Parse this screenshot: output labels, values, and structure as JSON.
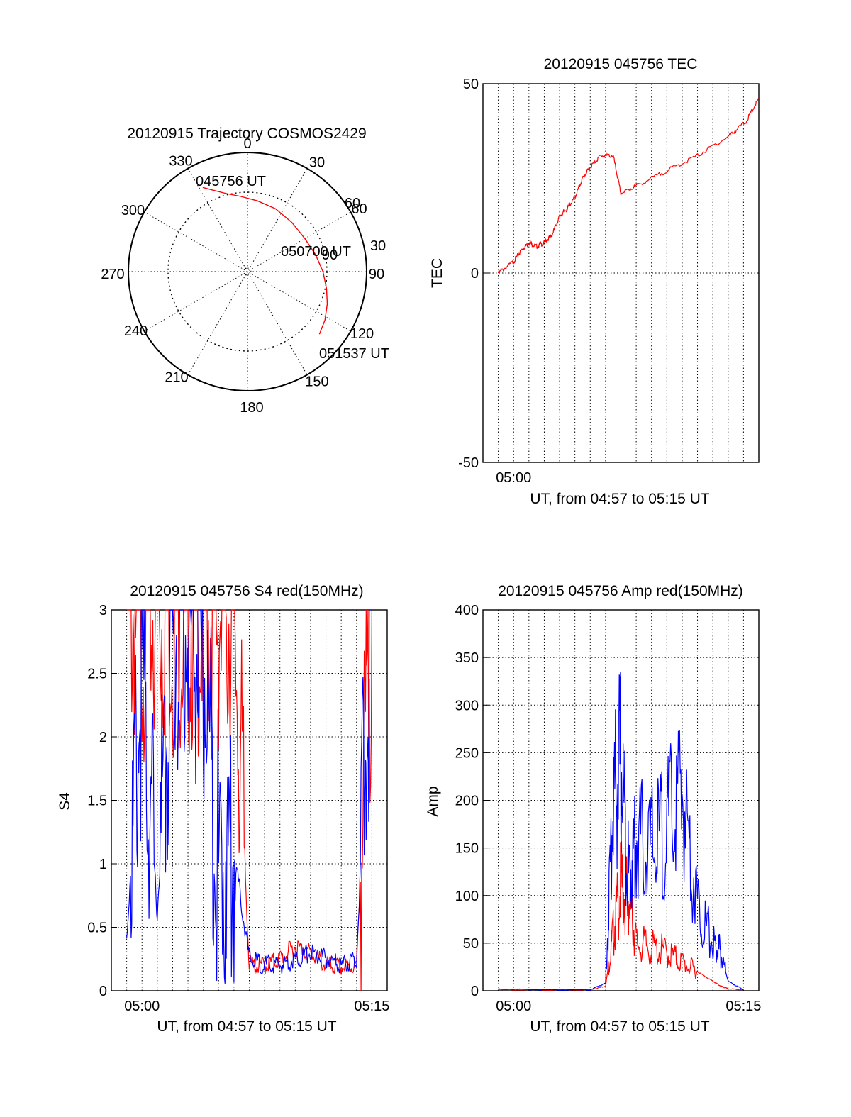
{
  "chart_data": [
    {
      "type": "polar",
      "title": "20120915 Trajectory COSMOS2429",
      "angle_labels": [
        "0",
        "30",
        "60",
        "90",
        "120",
        "150",
        "180",
        "210",
        "240",
        "270",
        "300",
        "330"
      ],
      "radius_labels": [
        "30",
        "60",
        "90"
      ],
      "point_labels": {
        "start": "045756 UT",
        "mid": "050700 UT",
        "end": "051537 UT"
      },
      "rmax": 90,
      "trajectory": {
        "color": "#ff0000",
        "points": [
          {
            "az": 332,
            "el": 18
          },
          {
            "az": 338,
            "el": 24
          },
          {
            "az": 345,
            "el": 29
          },
          {
            "az": 355,
            "el": 33
          },
          {
            "az": 8,
            "el": 36
          },
          {
            "az": 24,
            "el": 38
          },
          {
            "az": 42,
            "el": 40
          },
          {
            "az": 60,
            "el": 40
          },
          {
            "az": 76,
            "el": 37
          },
          {
            "az": 90,
            "el": 33
          },
          {
            "az": 102,
            "el": 29
          },
          {
            "az": 112,
            "el": 25
          },
          {
            "az": 122,
            "el": 21
          },
          {
            "az": 131,
            "el": 18
          }
        ]
      }
    },
    {
      "type": "line",
      "title": "20120915 045756 TEC",
      "xlabel": "UT, from 04:57 to 05:15 UT",
      "ylabel": "TEC",
      "xlim": [
        "04:58",
        "05:16"
      ],
      "ylim": [
        -50,
        50
      ],
      "yticks": [
        "50",
        "0",
        "-50"
      ],
      "xticks": [
        {
          "x": "05:00",
          "label": "05:00"
        }
      ],
      "series": [
        {
          "color": "#ff0000",
          "x": [
            "04:59",
            "05:00",
            "05:00:30",
            "05:01",
            "05:01:30",
            "05:02",
            "05:02:30",
            "05:03",
            "05:03:30",
            "05:04",
            "05:04:30",
            "05:05",
            "05:05:40",
            "05:06:30",
            "05:07:00",
            "05:08",
            "05:10",
            "05:12",
            "05:14",
            "05:15:10",
            "05:16"
          ],
          "y": [
            0,
            3,
            6,
            8,
            7,
            8,
            10,
            15,
            17,
            20,
            25,
            28,
            31,
            31,
            21,
            23,
            27,
            31,
            36,
            40,
            46
          ]
        }
      ]
    },
    {
      "type": "line",
      "title": "20120915 045756 S4 red(150MHz)",
      "xlabel": "UT, from 04:57 to 05:15 UT",
      "ylabel": "S4",
      "xlim": [
        "04:58",
        "05:16"
      ],
      "ylim": [
        0,
        3
      ],
      "yticks": [
        "3",
        "2.5",
        "2",
        "1.5",
        "1",
        "0.5",
        "0"
      ],
      "xticks": [
        {
          "x": "05:00",
          "label": "05:00"
        },
        {
          "x": "05:15",
          "label": "05:15"
        }
      ],
      "series": [
        {
          "color": "#ff0000",
          "x": [
            "04:59",
            "05:00",
            "05:01",
            "05:02",
            "05:03",
            "05:04",
            "05:05",
            "05:06",
            "05:07",
            "05:08",
            "05:09",
            "05:10",
            "05:11",
            "05:12",
            "05:13",
            "05:14",
            "05:15"
          ],
          "y": [
            3,
            3,
            3,
            3,
            3,
            3,
            3,
            3,
            0.2,
            0.2,
            0.25,
            0.35,
            0.3,
            0.2,
            0.18,
            0.2,
            3
          ]
        },
        {
          "color": "#0000ff",
          "x": [
            "04:59",
            "05:00",
            "05:01",
            "05:02",
            "05:03",
            "05:04",
            "05:05",
            "05:06",
            "05:07",
            "05:08",
            "05:09",
            "05:10",
            "05:11",
            "05:12",
            "05:13",
            "05:14",
            "05:15"
          ],
          "y": [
            0.4,
            2.5,
            0.6,
            2.8,
            2.9,
            2.6,
            1.0,
            1.1,
            0.25,
            0.2,
            0.2,
            0.25,
            0.3,
            0.25,
            0.2,
            0.25,
            3
          ]
        }
      ]
    },
    {
      "type": "line",
      "title": "20120915 045756 Amp red(150MHz)",
      "xlabel": "UT, from 04:57 to 05:15 UT",
      "ylabel": "Amp",
      "xlim": [
        "04:58",
        "05:16"
      ],
      "ylim": [
        0,
        400
      ],
      "yticks": [
        "400",
        "350",
        "300",
        "250",
        "200",
        "150",
        "100",
        "50",
        "0"
      ],
      "xticks": [
        {
          "x": "05:00",
          "label": "05:00"
        },
        {
          "x": "05:15",
          "label": "05:15"
        }
      ],
      "series": [
        {
          "color": "#ff0000",
          "x": [
            "04:59",
            "05:02",
            "05:05",
            "05:06",
            "05:06:30",
            "05:07",
            "05:07:30",
            "05:08",
            "05:09",
            "05:10",
            "05:11",
            "05:12",
            "05:13",
            "05:13:30",
            "05:14",
            "05:15"
          ],
          "y": [
            1,
            1,
            1,
            5,
            60,
            110,
            100,
            50,
            45,
            40,
            30,
            20,
            10,
            5,
            2,
            1
          ]
        },
        {
          "color": "#0000ff",
          "x": [
            "04:59",
            "05:02",
            "05:05",
            "05:06",
            "05:06:30",
            "05:07",
            "05:07:30",
            "05:08",
            "05:09",
            "05:10",
            "05:11",
            "05:12",
            "05:13",
            "05:13:30",
            "05:14",
            "05:15"
          ],
          "y": [
            2,
            1,
            1,
            8,
            200,
            240,
            120,
            160,
            150,
            170,
            210,
            90,
            50,
            40,
            10,
            1
          ]
        }
      ]
    }
  ]
}
